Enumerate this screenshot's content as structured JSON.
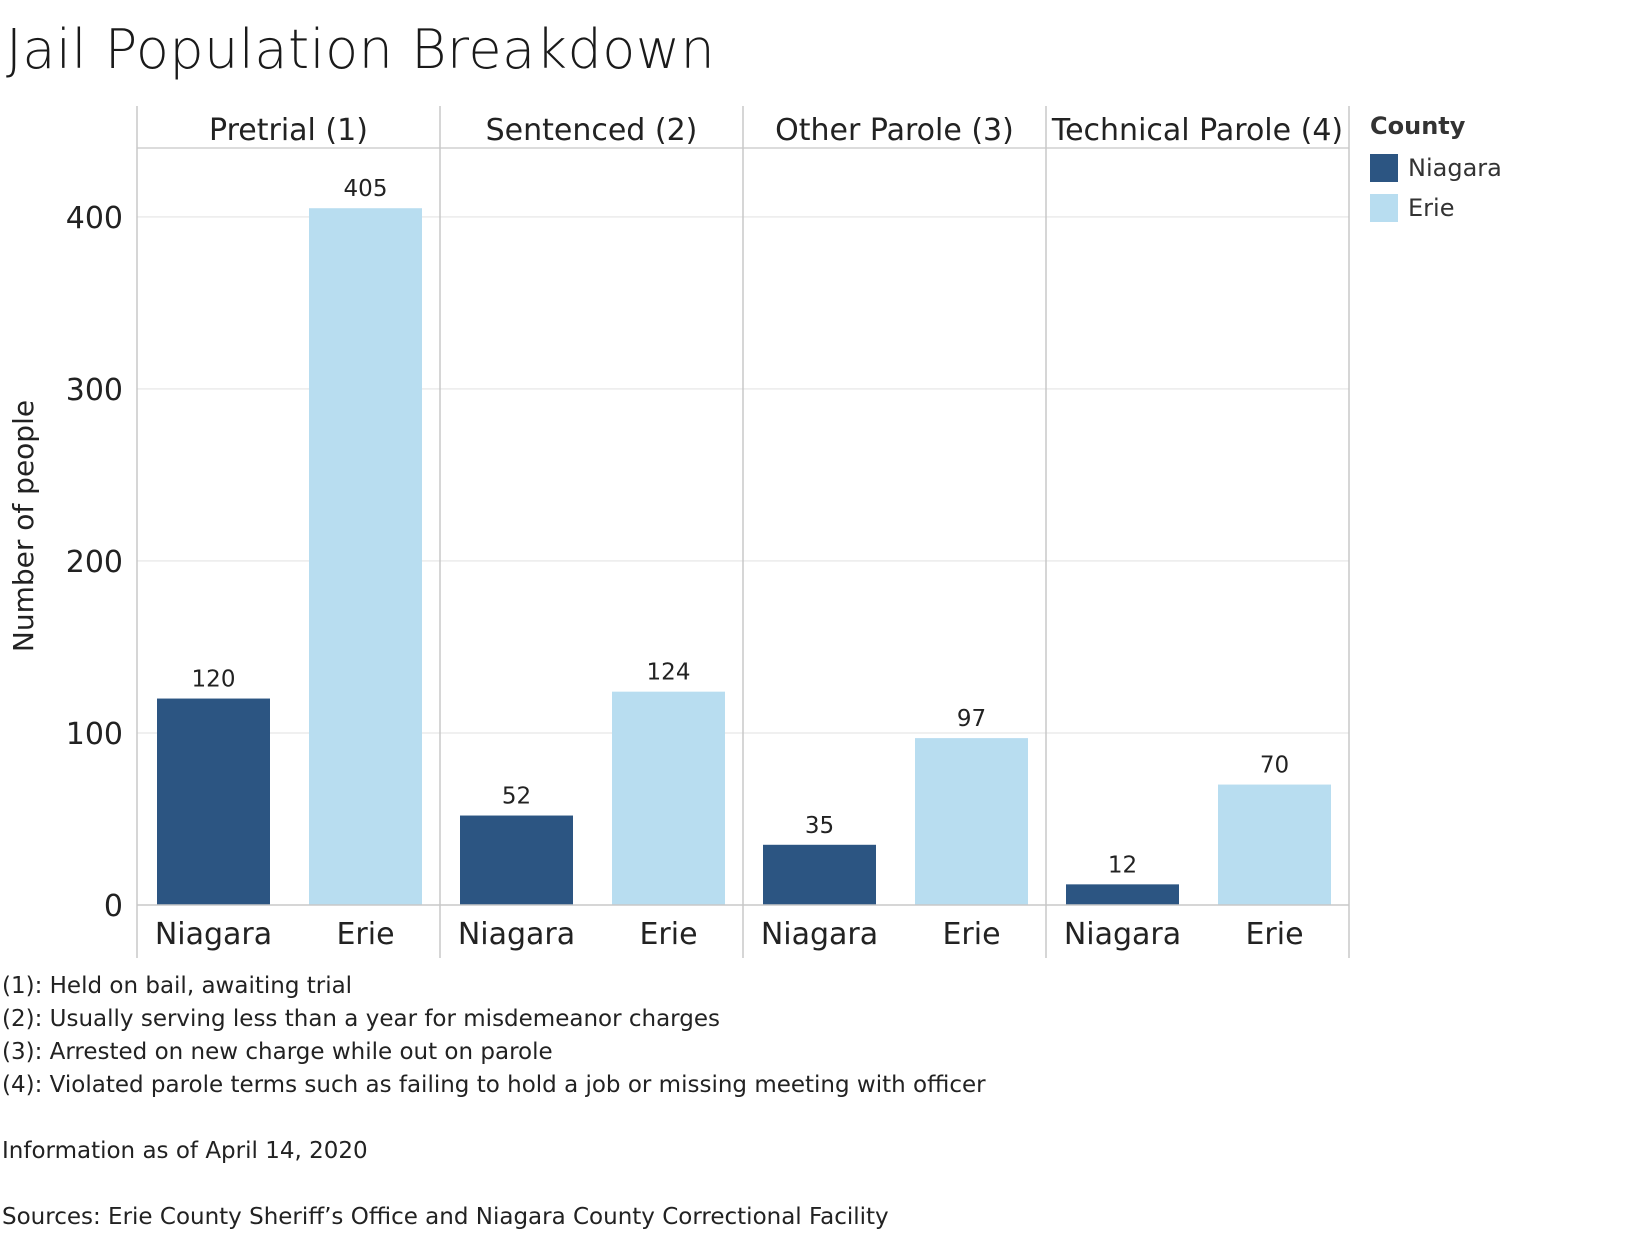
{
  "title": "Jail Population Breakdown",
  "chart_data": {
    "type": "bar",
    "ylabel": "Number of people",
    "ylim": [
      0,
      440
    ],
    "yticks": [
      0,
      100,
      200,
      300,
      400
    ],
    "grid": true,
    "legend_position": "top-right",
    "panels": [
      {
        "label": "Pretrial (1)",
        "categories": [
          "Niagara",
          "Erie"
        ],
        "values": [
          120,
          405
        ]
      },
      {
        "label": "Sentenced (2)",
        "categories": [
          "Niagara",
          "Erie"
        ],
        "values": [
          52,
          124
        ]
      },
      {
        "label": "Other Parole (3)",
        "categories": [
          "Niagara",
          "Erie"
        ],
        "values": [
          35,
          97
        ]
      },
      {
        "label": "Technical Parole (4)",
        "categories": [
          "Niagara",
          "Erie"
        ],
        "values": [
          12,
          70
        ]
      }
    ],
    "legend": {
      "title": "County",
      "items": [
        {
          "name": "Niagara",
          "color": "#2c5582"
        },
        {
          "name": "Erie",
          "color": "#b8ddf0"
        }
      ]
    }
  },
  "notes": [
    "(1): Held on bail, awaiting trial",
    "(2): Usually serving less than a year for misdemeanor charges",
    "(3): Arrested on new charge while out on parole",
    "(4): Violated parole terms such as failing to hold a job or missing meeting with officer"
  ],
  "info": "Information as of April 14, 2020",
  "sources": "Sources: Erie County Sheriff’s Office and Niagara County Correctional Facility"
}
